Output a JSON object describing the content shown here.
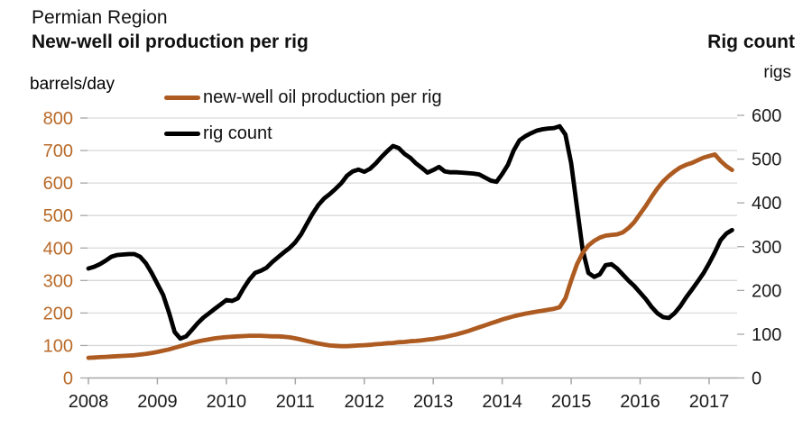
{
  "header": {
    "region": "Permian Region",
    "title": "New-well oil production per rig",
    "right_title": "Rig count",
    "left_unit": "barrels/day",
    "right_unit": "rigs"
  },
  "legend": [
    {
      "label": "new-well oil production per rig",
      "color": "#ad5b21"
    },
    {
      "label": "rig count",
      "color": "#000000"
    }
  ],
  "colors": {
    "production_line": "#ad5b21",
    "rig_count_line": "#000000",
    "left_axis_text": "#b96a28",
    "axis_text": "#1a1a1a",
    "gridline": "#d9d9d9",
    "axis_line": "#a6a6a6"
  },
  "chart_data": {
    "type": "line",
    "title": "Permian Region — New-well oil production per rig",
    "x_monthly_start": "2008-01",
    "x_monthly_end": "2017-05",
    "x_tick_labels": [
      "2008",
      "2009",
      "2010",
      "2011",
      "2012",
      "2013",
      "2014",
      "2015",
      "2016",
      "2017"
    ],
    "grid": true,
    "legend_position": "top-left",
    "left_axis": {
      "label": "barrels/day",
      "min": 0,
      "max": 800,
      "ticks": [
        0,
        100,
        200,
        300,
        400,
        500,
        600,
        700,
        800
      ]
    },
    "right_axis": {
      "label": "rigs",
      "min": 0,
      "max": 600,
      "ticks": [
        0,
        100,
        200,
        300,
        400,
        500,
        600
      ]
    },
    "series": [
      {
        "name": "new-well oil production per rig",
        "axis": "left",
        "color": "#ad5b21",
        "values": [
          62,
          63,
          64,
          65,
          66,
          67,
          68,
          69,
          70,
          72,
          74,
          77,
          80,
          84,
          88,
          93,
          98,
          103,
          108,
          112,
          116,
          119,
          122,
          124,
          126,
          127,
          128,
          129,
          130,
          130,
          130,
          129,
          128,
          128,
          127,
          125,
          122,
          118,
          114,
          110,
          106,
          103,
          100,
          99,
          98,
          98,
          99,
          100,
          101,
          102,
          104,
          105,
          107,
          108,
          110,
          111,
          113,
          114,
          116,
          118,
          120,
          123,
          126,
          130,
          134,
          139,
          144,
          150,
          156,
          162,
          168,
          174,
          180,
          185,
          190,
          194,
          198,
          201,
          204,
          207,
          210,
          213,
          218,
          245,
          300,
          350,
          385,
          408,
          422,
          432,
          438,
          440,
          442,
          448,
          462,
          480,
          505,
          530,
          558,
          583,
          605,
          622,
          636,
          648,
          656,
          662,
          670,
          678,
          683,
          688,
          668,
          652,
          640
        ]
      },
      {
        "name": "rig count",
        "axis": "right",
        "color": "#000000",
        "values": [
          250,
          254,
          260,
          268,
          277,
          281,
          282,
          283,
          283,
          277,
          262,
          240,
          215,
          190,
          150,
          105,
          90,
          95,
          110,
          125,
          138,
          148,
          158,
          168,
          178,
          176,
          182,
          205,
          225,
          240,
          245,
          252,
          265,
          276,
          287,
          297,
          310,
          328,
          352,
          375,
          395,
          410,
          420,
          432,
          445,
          462,
          472,
          476,
          471,
          478,
          490,
          505,
          518,
          530,
          525,
          512,
          503,
          490,
          480,
          469,
          475,
          482,
          472,
          470,
          470,
          469,
          468,
          467,
          465,
          458,
          451,
          448,
          466,
          487,
          520,
          543,
          552,
          559,
          565,
          568,
          570,
          571,
          575,
          556,
          490,
          390,
          293,
          240,
          231,
          237,
          258,
          260,
          250,
          236,
          222,
          210,
          195,
          180,
          162,
          148,
          139,
          137,
          148,
          164,
          184,
          202,
          220,
          239,
          262,
          287,
          315,
          330,
          338
        ]
      }
    ]
  }
}
